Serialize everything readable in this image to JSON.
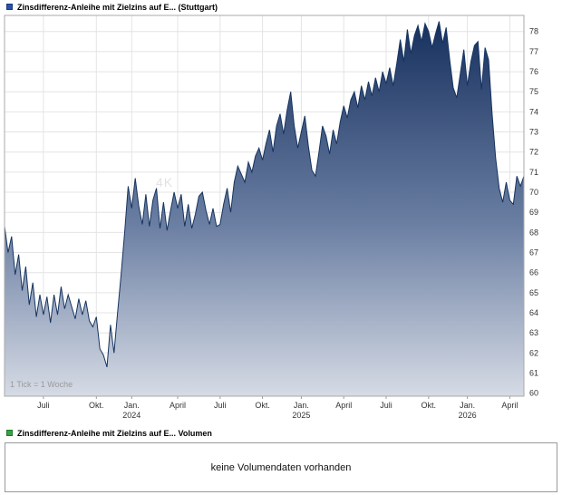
{
  "header": {
    "title": "Zinsdifferenz-Anleihe mit Zielzins auf E... (Stuttgart)",
    "swatch_color": "#2b52a8"
  },
  "chart": {
    "tick_note": "1 Tick = 1 Woche",
    "watermark": "4K"
  },
  "chart_data": {
    "type": "area",
    "title": "Zinsdifferenz-Anleihe mit Zielzins auf E... (Stuttgart)",
    "xlabel": "",
    "ylabel": "",
    "x_unit": "weeks, 1 tick = 1 week",
    "ylim": [
      59.85,
      78.8
    ],
    "grid": true,
    "legend_position": "top-left",
    "y_ticks": [
      60,
      61,
      62,
      63,
      64,
      65,
      66,
      67,
      68,
      69,
      70,
      71,
      72,
      73,
      74,
      75,
      76,
      77,
      78
    ],
    "x_ticks": [
      {
        "label": "Juli",
        "week": 11
      },
      {
        "label": "Okt.",
        "week": 26
      },
      {
        "label": "Jan.",
        "year": "2024",
        "week": 36
      },
      {
        "label": "April",
        "week": 49
      },
      {
        "label": "Juli",
        "week": 61
      },
      {
        "label": "Okt.",
        "week": 73
      },
      {
        "label": "Jan.",
        "year": "2025",
        "week": 84
      },
      {
        "label": "April",
        "week": 96
      },
      {
        "label": "Juli",
        "week": 108
      },
      {
        "label": "Okt.",
        "week": 120
      },
      {
        "label": "Jan.",
        "year": "2026",
        "week": 131
      },
      {
        "label": "April",
        "week": 143
      }
    ],
    "values": [
      68.3,
      67.0,
      67.8,
      65.9,
      66.9,
      65.1,
      66.3,
      64.4,
      65.5,
      63.8,
      64.9,
      63.9,
      64.8,
      63.5,
      64.9,
      63.9,
      65.3,
      64.2,
      64.9,
      64.3,
      63.7,
      64.7,
      63.9,
      64.6,
      63.6,
      63.3,
      63.8,
      62.2,
      61.9,
      61.3,
      63.4,
      62.0,
      64.0,
      65.9,
      68.0,
      70.3,
      69.2,
      70.7,
      69.3,
      68.4,
      69.9,
      68.3,
      69.6,
      70.2,
      68.2,
      69.5,
      68.1,
      69.1,
      70.0,
      69.2,
      69.9,
      68.3,
      69.4,
      68.2,
      68.9,
      69.8,
      70.0,
      69.1,
      68.4,
      69.2,
      68.3,
      68.4,
      69.4,
      70.2,
      69.0,
      70.5,
      71.3,
      70.9,
      70.5,
      71.5,
      71.0,
      71.8,
      72.2,
      71.6,
      72.4,
      73.1,
      72.0,
      73.3,
      73.9,
      72.9,
      74.1,
      75.0,
      73.3,
      72.2,
      73.0,
      73.8,
      72.3,
      71.1,
      70.8,
      72.0,
      73.3,
      72.8,
      71.9,
      73.1,
      72.4,
      73.5,
      74.3,
      73.7,
      74.6,
      75.0,
      74.2,
      75.3,
      74.6,
      75.5,
      74.8,
      75.7,
      75.0,
      76.0,
      75.4,
      76.2,
      75.3,
      76.4,
      77.6,
      76.5,
      78.1,
      76.9,
      77.8,
      78.3,
      77.5,
      78.4,
      78.0,
      77.2,
      77.9,
      78.5,
      77.4,
      78.2,
      76.6,
      75.2,
      74.7,
      75.9,
      77.1,
      75.3,
      76.5,
      77.3,
      77.5,
      75.1,
      77.2,
      76.6,
      73.9,
      71.7,
      70.2,
      69.5,
      70.5,
      69.6,
      69.4,
      70.8,
      70.3,
      70.8
    ],
    "colors": {
      "line": "#16345f",
      "fill_top": "#142e5c",
      "fill_mid": "#6b7fa3",
      "fill_bottom": "#d6dbe5",
      "grid": "#e4e4e4",
      "axis": "#aaaaaa",
      "tick": "#999999"
    }
  },
  "volume": {
    "legend": "Zinsdifferenz-Anleihe mit Zielzins auf E... Volumen",
    "empty_message": "keine Volumendaten vorhanden",
    "swatch_color": "#3da043"
  }
}
